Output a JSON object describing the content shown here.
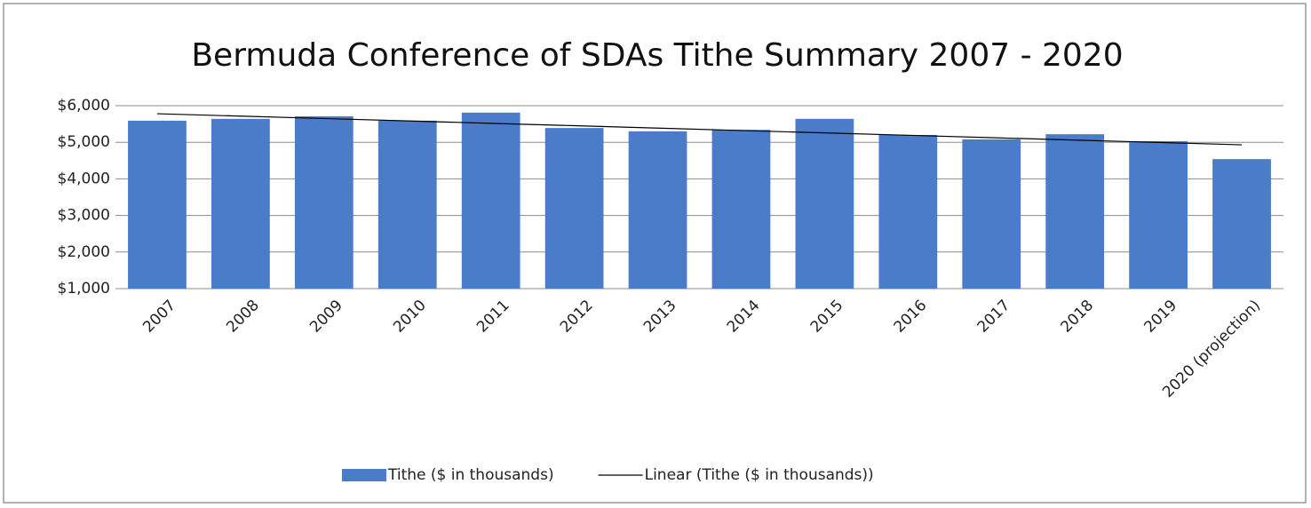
{
  "chart_data": {
    "type": "bar",
    "title": "Bermuda Conference of SDAs Tithe Summary 2007 - 2020",
    "categories": [
      "2007",
      "2008",
      "2009",
      "2010",
      "2011",
      "2012",
      "2013",
      "2014",
      "2015",
      "2016",
      "2017",
      "2018",
      "2019",
      "2020 (projection)"
    ],
    "series": [
      {
        "name": "Tithe ($ in thousands)",
        "color": "#4a7cc9",
        "type": "bar",
        "values": [
          5590,
          5640,
          5710,
          5590,
          5810,
          5390,
          5300,
          5340,
          5640,
          5200,
          5080,
          5220,
          5030,
          4540
        ]
      },
      {
        "name": "Linear (Tithe ($ in thousands))",
        "color": "#000000",
        "type": "line",
        "values": [
          5780,
          5715,
          5649,
          5584,
          5518,
          5453,
          5387,
          5322,
          5256,
          5191,
          5126,
          5060,
          4995,
          4930
        ]
      }
    ],
    "ylim": [
      1000,
      6000
    ],
    "yticks": [
      {
        "value": 1000,
        "label": "$1,000"
      },
      {
        "value": 2000,
        "label": "$2,000"
      },
      {
        "value": 3000,
        "label": "$3,000"
      },
      {
        "value": 4000,
        "label": "$4,000"
      },
      {
        "value": 5000,
        "label": "$5,000"
      },
      {
        "value": 6000,
        "label": "$6,000"
      }
    ],
    "grid": true,
    "legend": "bottom"
  }
}
